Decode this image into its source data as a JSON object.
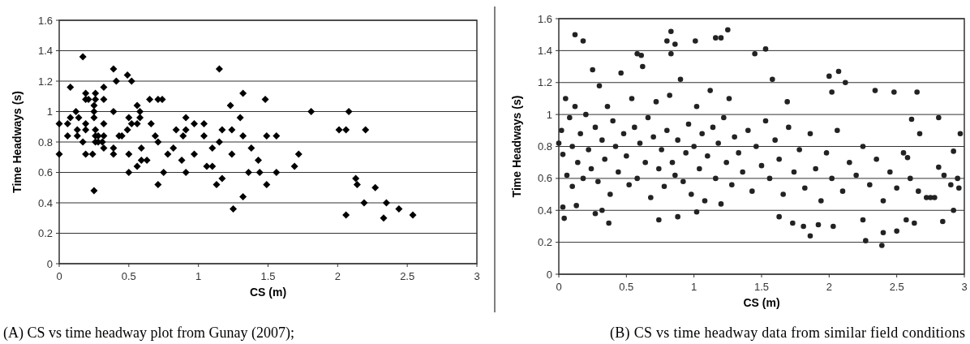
{
  "chart_data": [
    {
      "type": "scatter",
      "xlabel": "CS (m)",
      "ylabel": "Time Headways (s)",
      "xlim": [
        0,
        3
      ],
      "ylim": [
        0,
        1.6
      ],
      "xticks": [
        0,
        0.5,
        1,
        1.5,
        2,
        2.5,
        3
      ],
      "yticks": [
        0,
        0.2,
        0.4,
        0.6,
        0.8,
        1,
        1.2,
        1.4,
        1.6
      ],
      "grid": "y",
      "marker": "diamond",
      "annotations": [
        "(A) CS vs time headway plot from Gunay (2007);"
      ],
      "series": [
        {
          "color": "#000000",
          "x": [
            0,
            0,
            0.06,
            0.06,
            0.08,
            0.08,
            0.12,
            0.13,
            0.13,
            0.14,
            0.17,
            0.17,
            0.19,
            0.19,
            0.19,
            0.19,
            0.21,
            0.19,
            0.24,
            0.25,
            0.25,
            0.25,
            0.25,
            0.26,
            0.26,
            0.26,
            0.26,
            0.26,
            0.28,
            0.28,
            0.31,
            0.32,
            0.32,
            0.32,
            0.32,
            0.32,
            0.39,
            0.39,
            0.39,
            0.39,
            0.41,
            0.43,
            0.45,
            0.49,
            0.52,
            0.49,
            0.5,
            0.5,
            0.5,
            0.52,
            0.56,
            0.56,
            0.56,
            0.58,
            0.58,
            0.59,
            0.59,
            0.63,
            0.65,
            0.66,
            0.69,
            0.71,
            0.74,
            0.71,
            0.71,
            0.75,
            0.78,
            0.82,
            0.84,
            0.88,
            0.89,
            0.91,
            0.91,
            0.91,
            0.97,
            0.97,
            1.04,
            1.04,
            1.06,
            1.1,
            1.1,
            1.13,
            1.15,
            1.15,
            1.17,
            1.17,
            1.23,
            1.24,
            1.24,
            1.25,
            1.3,
            1.32,
            1.32,
            1.32,
            1.38,
            1.36,
            1.43,
            1.44,
            1.48,
            1.49,
            1.49,
            1.56,
            1.56,
            1.69,
            1.72,
            1.81,
            2.01,
            2.06,
            2.08,
            2.06,
            2.2,
            2.13,
            2.14,
            2.19,
            2.27,
            2.33,
            2.35,
            2.44,
            2.54
          ],
          "values": [
            0.92,
            0.72,
            0.92,
            0.84,
            0.96,
            1.16,
            1,
            0.88,
            0.84,
            0.96,
            1.36,
            0.8,
            0.92,
            0.72,
            1.08,
            1.12,
            1.08,
            0.88,
            0.72,
            1.04,
            1,
            0.96,
            0.48,
            1.12,
            1.08,
            0.88,
            0.84,
            0.8,
            0.84,
            0.8,
            0.8,
            0.76,
            0.84,
            0.92,
            1.08,
            1.16,
            1.28,
            1,
            0.76,
            0.72,
            1.2,
            0.84,
            0.84,
            1.24,
            1.2,
            0.88,
            0.96,
            0.72,
            0.6,
            0.92,
            1.04,
            0.92,
            0.64,
            0.96,
            1,
            0.76,
            0.68,
            0.68,
            1.08,
            0.92,
            0.84,
            1.08,
            1.08,
            0.8,
            0.52,
            0.6,
            0.72,
            0.76,
            0.88,
            0.68,
            0.84,
            0.88,
            0.96,
            0.6,
            0.92,
            0.72,
            0.92,
            0.84,
            0.64,
            0.64,
            0.76,
            0.52,
            1.28,
            0.8,
            0.88,
            0.56,
            1.04,
            0.88,
            0.72,
            0.36,
            0.96,
            1.12,
            0.84,
            0.44,
            0.76,
            0.6,
            0.68,
            0.6,
            1.08,
            0.84,
            0.52,
            0.84,
            0.6,
            0.64,
            0.72,
            1,
            0.88,
            0.88,
            1,
            0.32,
            0.88,
            0.56,
            0.52,
            0.4,
            0.5,
            0.3,
            0.4,
            0.36,
            0.32
          ]
        }
      ]
    },
    {
      "type": "scatter",
      "xlabel": "CS (m)",
      "ylabel": "Time Headways (s)",
      "xlim": [
        0,
        3
      ],
      "ylim": [
        0,
        1.6
      ],
      "xticks": [
        0,
        0.5,
        1,
        1.5,
        2,
        2.5,
        3
      ],
      "yticks": [
        0,
        0.2,
        0.4,
        0.6,
        0.8,
        1,
        1.2,
        1.4,
        1.6
      ],
      "grid": "y",
      "marker": "circle",
      "annotations": [
        "(B) CS vs time headway data from similar field conditions"
      ],
      "series": [
        {
          "color": "#222222",
          "x": [
            0.12,
            0.18,
            0.83,
            0.8,
            0.86,
            1.01,
            1.16,
            1.2,
            1.25,
            0.83,
            0.58,
            0.61,
            0.37,
            0.74,
            0.88,
            0.04,
            0.13,
            0.32,
            0.27,
            1.02,
            0.03,
            1.53,
            1.45,
            1.58,
            2,
            2.07,
            2.12,
            2.02,
            2.34,
            2.48,
            2.65,
            1.69,
            2.39,
            2.27,
            1.86,
            2.4,
            2.97,
            2.67,
            2.81,
            2.61,
            2.92,
            2.84,
            2.5,
            1.73,
            1.81,
            1.92,
            2.03,
            1.63,
            2.96,
            2.75,
            2.92,
            2.58,
            2.81,
            2.25,
            2.57,
            2.63,
            0,
            0.02,
            0.03,
            0.05,
            0.06,
            0.08,
            0.1,
            0.1,
            0.12,
            0.14,
            0.16,
            0.18,
            0.2,
            0.22,
            0.24,
            0.25,
            0.27,
            0.29,
            0.3,
            0.32,
            0.34,
            0.36,
            0.38,
            0.4,
            0.42,
            0.44,
            0.46,
            0.48,
            0.5,
            0.52,
            0.54,
            0.56,
            0.58,
            0.6,
            0.62,
            0.64,
            0.66,
            0.68,
            0.7,
            0.72,
            0.74,
            0.76,
            0.78,
            0.8,
            0.82,
            0.84,
            0.86,
            0.88,
            0.9,
            0.92,
            0.94,
            0.96,
            0.98,
            1,
            1.02,
            1.04,
            1.06,
            1.08,
            1.1,
            1.12,
            1.14,
            1.16,
            1.18,
            1.2,
            1.22,
            1.24,
            1.26,
            1.28,
            1.3,
            1.33,
            1.36,
            1.4,
            1.43,
            1.46,
            1.5,
            1.53,
            1.56,
            1.6,
            1.63,
            1.66,
            1.7,
            1.74,
            1.78,
            1.82,
            1.86,
            1.9,
            1.94,
            1.98,
            2.02,
            2.06,
            2.1,
            2.15,
            2.2,
            2.25,
            2.3,
            2.35,
            2.4,
            2.45,
            2.5,
            2.55,
            2.6,
            2.66,
            2.72,
            2.78,
            2.85,
            2.9,
            2.95
          ],
          "values": [
            1.5,
            1.46,
            1.52,
            1.46,
            1.44,
            1.46,
            1.48,
            1.48,
            1.53,
            1.38,
            1.38,
            1.37,
            0.32,
            0.34,
            0.36,
            0.35,
            0.43,
            0.4,
            0.38,
            0.39,
            0.42,
            1.41,
            1.38,
            1.22,
            1.24,
            1.27,
            1.2,
            1.14,
            1.15,
            1.14,
            1.14,
            1.08,
            0.18,
            0.21,
            0.24,
            0.26,
            0.88,
            0.88,
            0.98,
            0.97,
            0.4,
            0.33,
            0.27,
            0.32,
            0.3,
            0.31,
            0.3,
            0.36,
            0.54,
            0.48,
            0.77,
            0.73,
            0.67,
            0.34,
            0.34,
            0.32,
            0.82,
            0.9,
            0.75,
            1.1,
            0.62,
            0.98,
            0.8,
            0.55,
            1.05,
            0.7,
            0.88,
            0.6,
            1,
            0.78,
            0.66,
            1.28,
            0.92,
            0.58,
            1.18,
            0.84,
            0.72,
            1.05,
            0.5,
            0.96,
            0.8,
            0.64,
            1.26,
            0.88,
            0.74,
            0.56,
            1.1,
            0.92,
            0.6,
            0.82,
            1.3,
            0.7,
            0.98,
            0.48,
            0.86,
            1.08,
            0.66,
            0.78,
            0.55,
            0.9,
            1.12,
            0.7,
            0.62,
            0.84,
            1.22,
            0.58,
            0.76,
            0.94,
            0.5,
            0.8,
            1.05,
            0.66,
            0.88,
            0.46,
            0.74,
            1.15,
            0.92,
            0.6,
            0.82,
            0.44,
            0.98,
            0.7,
            1.1,
            0.56,
            0.86,
            0.76,
            0.64,
            0.9,
            0.52,
            0.8,
            0.68,
            0.96,
            0.6,
            0.84,
            0.72,
            0.5,
            0.92,
            0.64,
            0.78,
            0.54,
            0.88,
            0.66,
            0.46,
            0.76,
            0.6,
            0.9,
            0.52,
            0.7,
            0.62,
            0.8,
            0.56,
            0.72,
            0.46,
            0.64,
            0.54,
            0.76,
            0.6,
            0.52,
            0.48,
            0.48,
            0.62,
            0.56,
            0.6
          ]
        }
      ]
    }
  ]
}
